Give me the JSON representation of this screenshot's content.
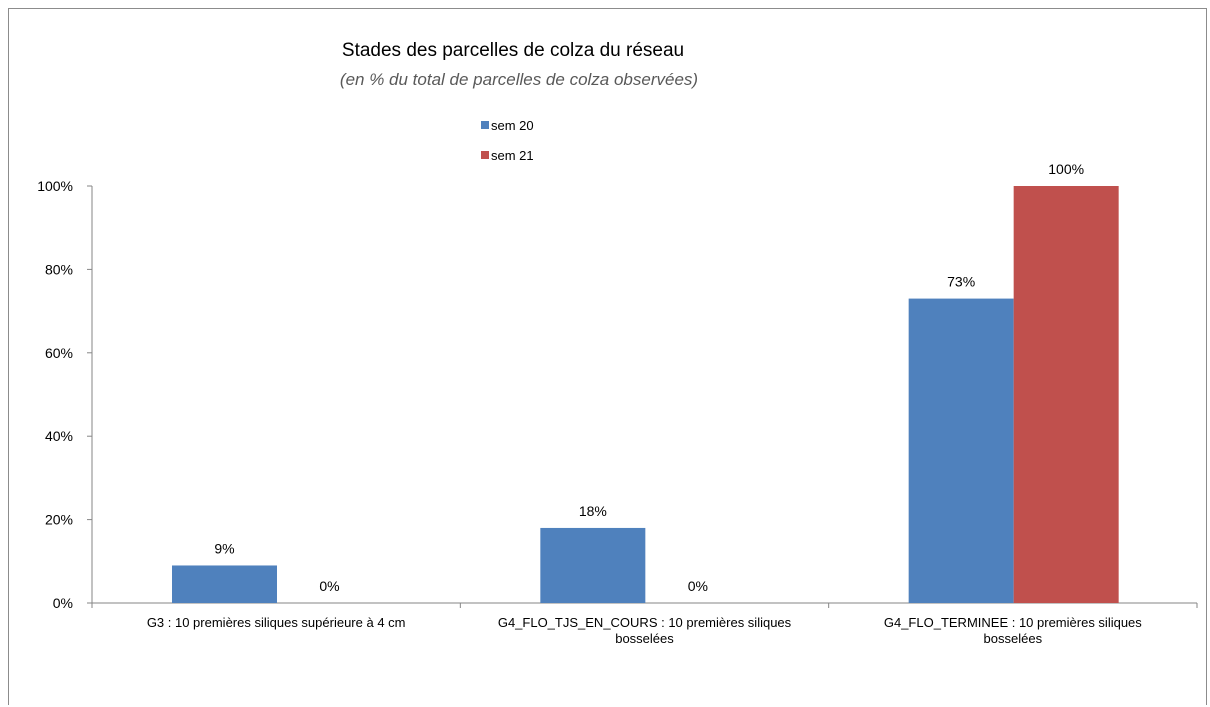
{
  "chart_data": {
    "type": "bar",
    "title": "Stades des parcelles de colza du réseau",
    "subtitle": "(en %  du total de parcelles de colza observées)",
    "categories": [
      [
        "G3 : 10 premières siliques supérieure à 4 cm"
      ],
      [
        "G4_FLO_TJS_EN_COURS : 10 premières siliques",
        "bosselées"
      ],
      [
        "G4_FLO_TERMINEE : 10 premières siliques",
        "bosselées"
      ]
    ],
    "series": [
      {
        "name": "sem 20",
        "color": "#4f81bd",
        "values": [
          9,
          18,
          73
        ],
        "labels": [
          "9%",
          "18%",
          "73%"
        ]
      },
      {
        "name": "sem 21",
        "color": "#c0504d",
        "values": [
          0,
          0,
          100
        ],
        "labels": [
          "0%",
          "0%",
          "100%"
        ]
      }
    ],
    "y_ticks": [
      0,
      20,
      40,
      60,
      80,
      100
    ],
    "y_tick_labels": [
      "0%",
      "20%",
      "40%",
      "60%",
      "80%",
      "100%"
    ],
    "ylim": [
      0,
      100
    ],
    "xlabel": "",
    "ylabel": "",
    "grid": false,
    "legend_position": "top-center"
  }
}
